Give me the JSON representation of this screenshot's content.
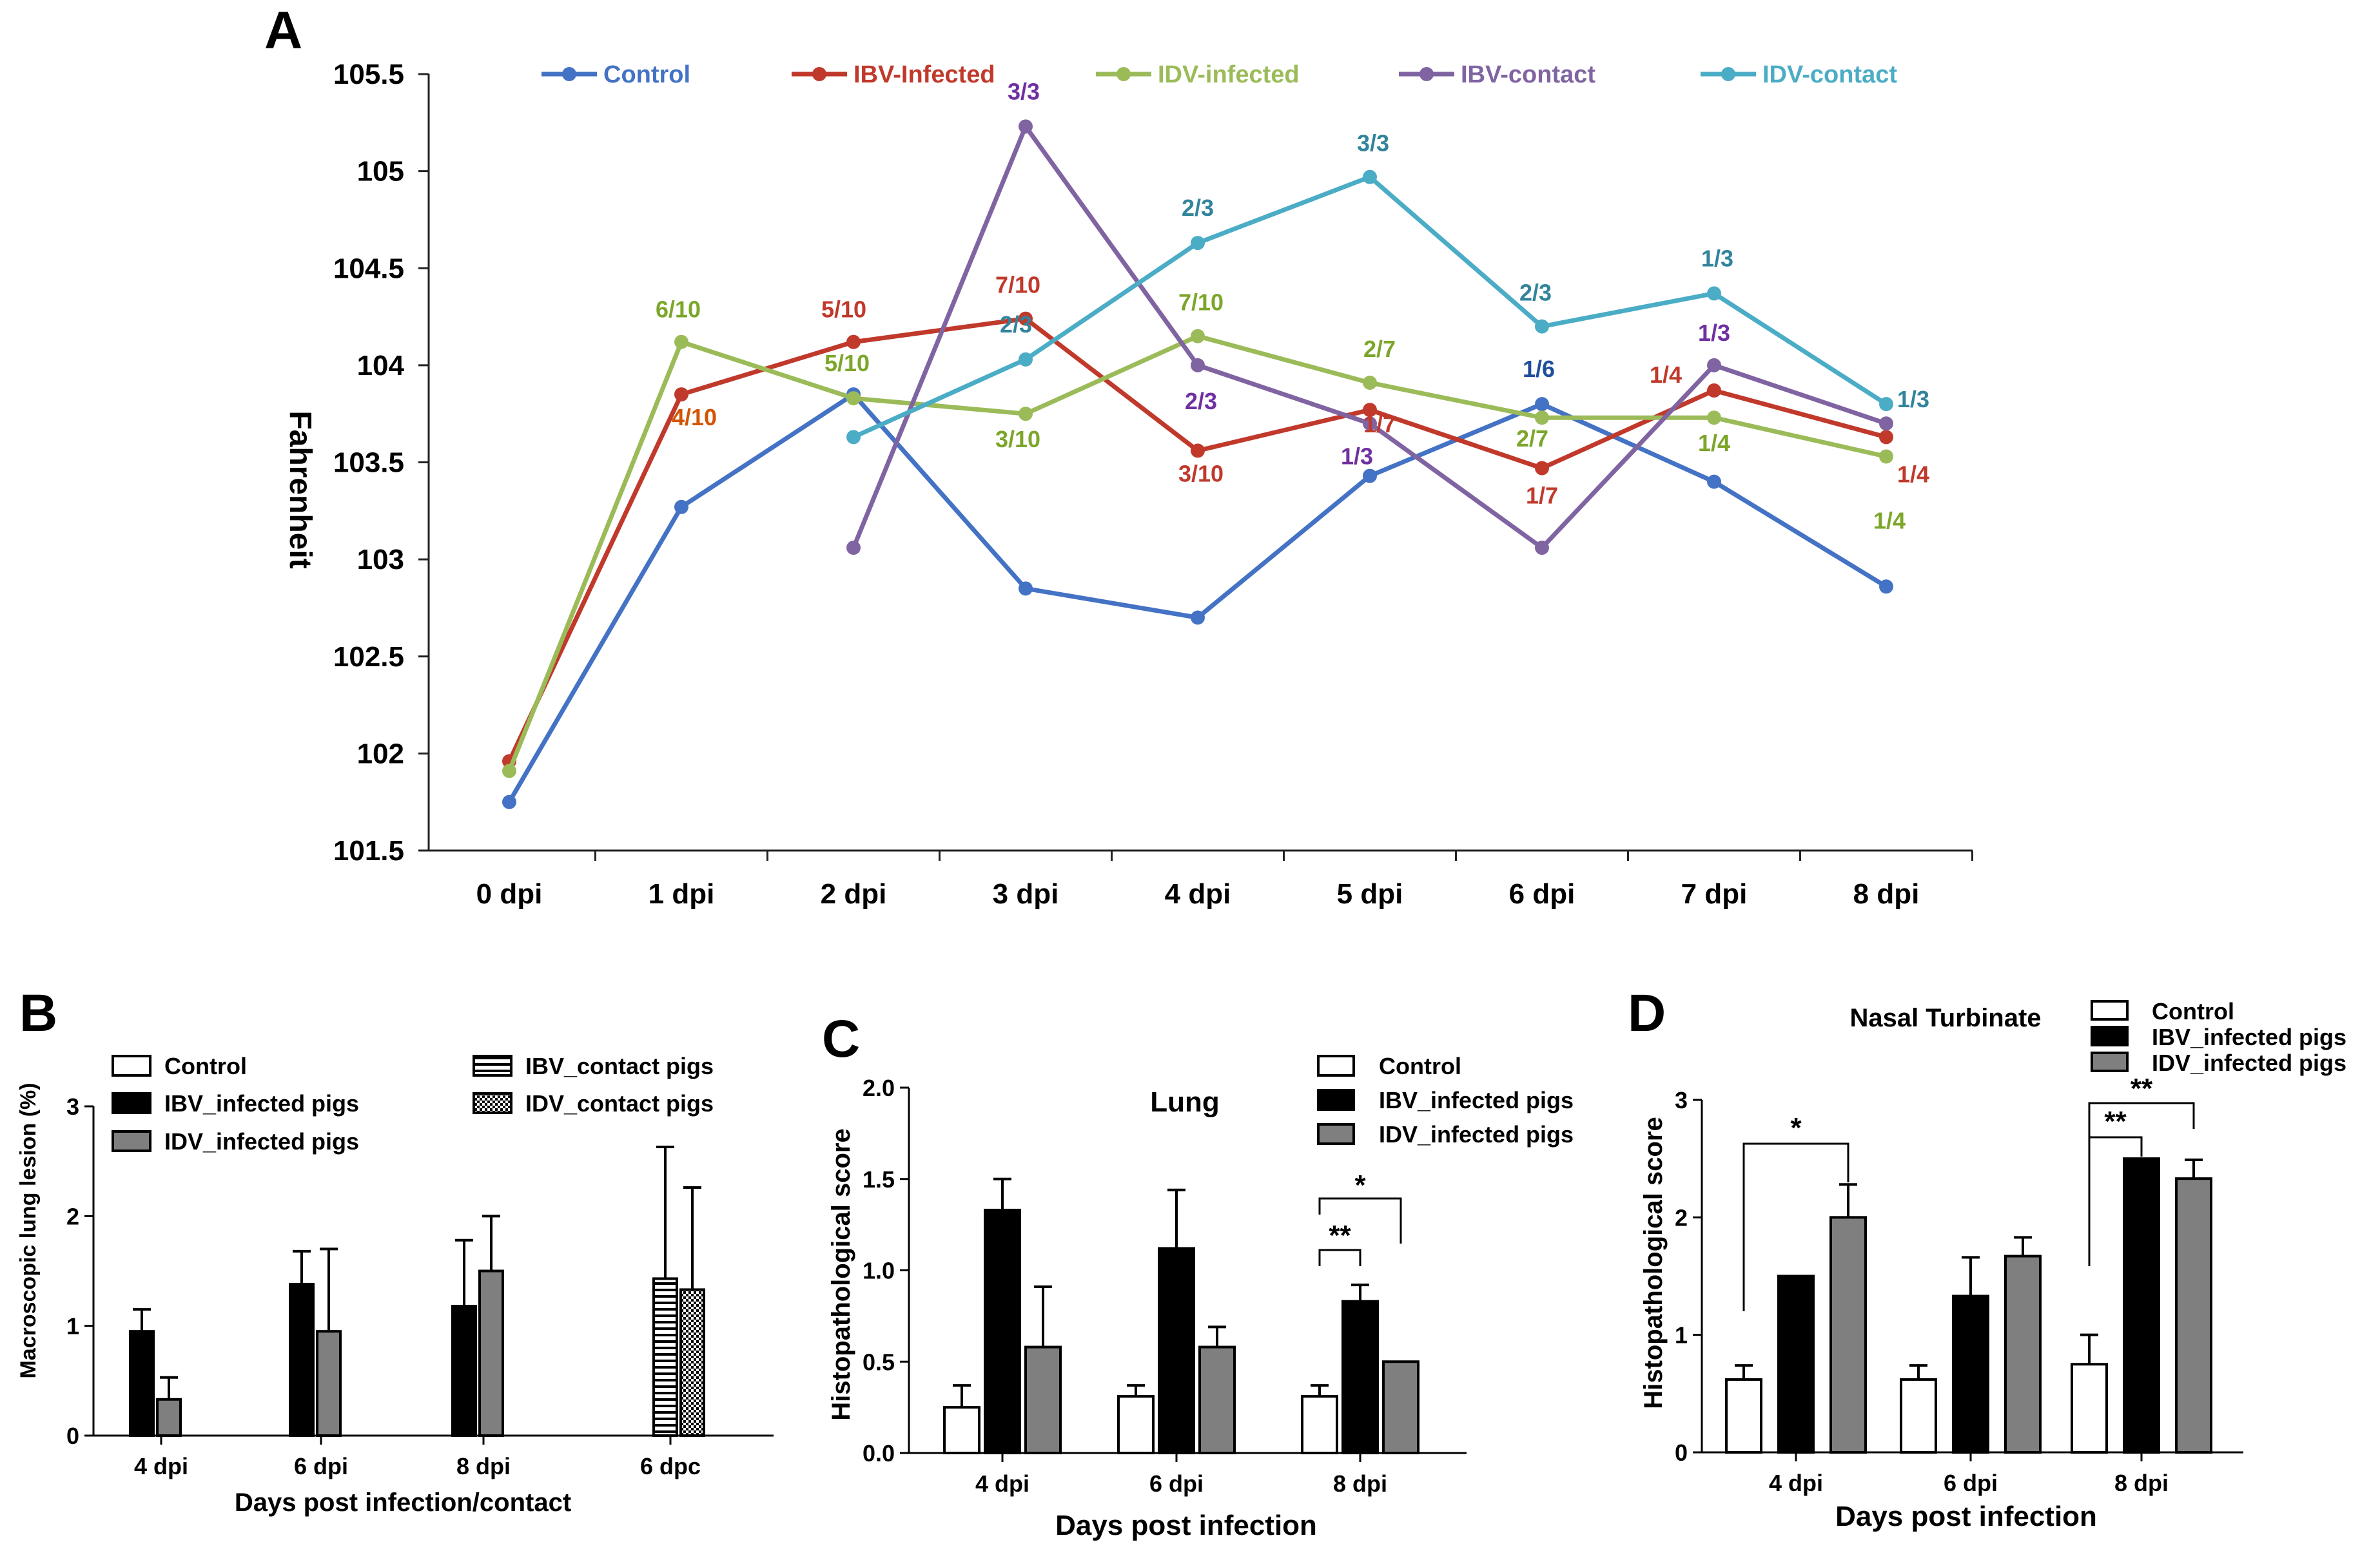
{
  "chart_data": [
    {
      "panel": "A",
      "type": "line",
      "ylabel": "Fahrenheit",
      "ylim": [
        101.5,
        105.5
      ],
      "ytick_labels": [
        "101.5",
        "102",
        "102.5",
        "103",
        "103.5",
        "104",
        "104.5",
        "105",
        "105.5"
      ],
      "yticks": [
        101.5,
        102,
        102.5,
        103,
        103.5,
        104,
        104.5,
        105,
        105.5
      ],
      "categories": [
        "0 dpi",
        "1 dpi",
        "2 dpi",
        "3 dpi",
        "4 dpi",
        "5 dpi",
        "6 dpi",
        "7 dpi",
        "8 dpi"
      ],
      "series": [
        {
          "name": "Control",
          "color": "#4472C4",
          "values": [
            101.75,
            103.27,
            103.85,
            102.85,
            102.7,
            103.43,
            103.8,
            103.4,
            102.86
          ]
        },
        {
          "name": "IBV-Infected",
          "color": "#C0392B",
          "values": [
            101.96,
            103.85,
            104.12,
            104.24,
            103.56,
            103.77,
            103.47,
            103.87,
            103.63
          ]
        },
        {
          "name": "IDV-infected",
          "color": "#9BBB59",
          "values": [
            101.91,
            104.12,
            103.83,
            103.75,
            104.15,
            103.91,
            103.73,
            103.73,
            103.53
          ]
        },
        {
          "name": "IBV-contact",
          "color": "#8064A2",
          "values": [
            null,
            null,
            103.06,
            105.23,
            104.0,
            103.7,
            103.06,
            104.0,
            103.7
          ]
        },
        {
          "name": "IDV-contact",
          "color": "#4BACC6",
          "values": [
            null,
            null,
            103.63,
            104.03,
            104.63,
            104.97,
            104.2,
            104.37,
            103.8
          ]
        }
      ],
      "annotations": [
        {
          "text": "6/10",
          "series": "IDV-infected",
          "category": "1 dpi",
          "color": "#7CA62A"
        },
        {
          "text": "4/10",
          "series": "IBV-Infected",
          "category": "1 dpi",
          "color": "#D35400"
        },
        {
          "text": "5/10",
          "series": "IBV-Infected",
          "category": "2 dpi",
          "color": "#C0392B"
        },
        {
          "text": "5/10",
          "series": "IDV-infected",
          "category": "2 dpi",
          "color": "#7CA62A"
        },
        {
          "text": "3/3",
          "series": "IBV-contact",
          "category": "3 dpi",
          "color": "#7030A0"
        },
        {
          "text": "7/10",
          "series": "IBV-Infected",
          "category": "3 dpi",
          "color": "#C0392B"
        },
        {
          "text": "2/3",
          "series": "IDV-contact",
          "category": "3 dpi",
          "color": "#31849B"
        },
        {
          "text": "3/10",
          "series": "IDV-infected",
          "category": "3 dpi",
          "color": "#7CA62A"
        },
        {
          "text": "2/3",
          "series": "IDV-contact",
          "category": "4 dpi",
          "color": "#31849B"
        },
        {
          "text": "7/10",
          "series": "IDV-infected",
          "category": "4 dpi",
          "color": "#7CA62A"
        },
        {
          "text": "2/3",
          "series": "IBV-contact",
          "category": "4 dpi",
          "color": "#7030A0"
        },
        {
          "text": "3/10",
          "series": "IBV-Infected",
          "category": "4 dpi",
          "color": "#C0392B"
        },
        {
          "text": "3/3",
          "series": "IDV-contact",
          "category": "5 dpi",
          "color": "#31849B"
        },
        {
          "text": "2/7",
          "series": "IDV-infected",
          "category": "5 dpi",
          "color": "#7CA62A"
        },
        {
          "text": "1/7",
          "series": "IBV-Infected",
          "category": "5 dpi",
          "color": "#C0392B"
        },
        {
          "text": "1/3",
          "series": "IBV-contact",
          "category": "5 dpi",
          "color": "#7030A0"
        },
        {
          "text": "2/3",
          "series": "IDV-contact",
          "category": "6 dpi",
          "color": "#31849B"
        },
        {
          "text": "1/6",
          "series": "Control",
          "category": "6 dpi",
          "color": "#1F4E9C"
        },
        {
          "text": "2/7",
          "series": "IDV-infected",
          "category": "6 dpi",
          "color": "#7CA62A"
        },
        {
          "text": "1/7",
          "series": "IBV-Infected",
          "category": "6 dpi",
          "color": "#C0392B"
        },
        {
          "text": "1/3",
          "series": "IDV-contact",
          "category": "7 dpi",
          "color": "#31849B"
        },
        {
          "text": "1/3",
          "series": "IBV-contact",
          "category": "7 dpi",
          "color": "#7030A0"
        },
        {
          "text": "1/4",
          "series": "IBV-Infected",
          "category": "7 dpi",
          "color": "#C0392B"
        },
        {
          "text": "1/4",
          "series": "IDV-infected",
          "category": "7 dpi",
          "color": "#7CA62A"
        },
        {
          "text": "1/3",
          "series": "IDV-contact",
          "category": "8 dpi",
          "color": "#31849B"
        },
        {
          "text": "1/4",
          "series": "IBV-Infected",
          "category": "8 dpi",
          "color": "#C0392B"
        },
        {
          "text": "1/4",
          "series": "IDV-infected",
          "category": "8 dpi",
          "color": "#7CA62A"
        }
      ]
    },
    {
      "panel": "B",
      "type": "bar",
      "ylabel": "Macroscopic lung lesion (%)",
      "xlabel": "Days post infection/contact",
      "ylim": [
        0,
        3
      ],
      "ytick_labels": [
        "0",
        "1",
        "2",
        "3"
      ],
      "yticks": [
        0,
        1,
        2,
        3
      ],
      "categories": [
        "4 dpi",
        "6 dpi",
        "8 dpi",
        "6 dpc"
      ],
      "series": [
        {
          "name": "Control",
          "fill": "white",
          "values": [
            0,
            0,
            0,
            0
          ],
          "errors": [
            0,
            0,
            0,
            0
          ]
        },
        {
          "name": "IBV_infected pigs",
          "fill": "black",
          "values": [
            0.95,
            1.38,
            1.18,
            0
          ],
          "errors": [
            0.2,
            0.3,
            0.6,
            0
          ]
        },
        {
          "name": "IDV_infected pigs",
          "fill": "gray",
          "values": [
            0.33,
            0.95,
            1.5,
            0
          ],
          "errors": [
            0.2,
            0.75,
            0.5,
            0
          ]
        },
        {
          "name": "IBV_contact pigs",
          "fill": "hstripe",
          "values": [
            0,
            0,
            0,
            1.43
          ],
          "errors": [
            0,
            0,
            0,
            1.2
          ]
        },
        {
          "name": "IDV_contact pigs",
          "fill": "checker",
          "values": [
            0,
            0,
            0,
            1.33
          ],
          "errors": [
            0,
            0,
            0,
            0.93
          ]
        }
      ]
    },
    {
      "panel": "C",
      "type": "bar",
      "title": "Lung",
      "ylabel": "Histopathological score",
      "xlabel": "Days post infection",
      "ylim": [
        0,
        2
      ],
      "ytick_labels": [
        "0.0",
        "0.5",
        "1.0",
        "1.5",
        "2.0"
      ],
      "yticks": [
        0,
        0.5,
        1,
        1.5,
        2
      ],
      "categories": [
        "4 dpi",
        "6 dpi",
        "8 dpi"
      ],
      "series": [
        {
          "name": "Control",
          "fill": "white",
          "values": [
            0.25,
            0.31,
            0.31
          ],
          "errors": [
            0.12,
            0.06,
            0.06
          ]
        },
        {
          "name": "IBV_infected pigs",
          "fill": "black",
          "values": [
            1.33,
            1.12,
            0.83
          ],
          "errors": [
            0.17,
            0.32,
            0.09
          ]
        },
        {
          "name": "IDV_infected pigs",
          "fill": "gray",
          "values": [
            0.58,
            0.58,
            0.5
          ],
          "errors": [
            0.33,
            0.11,
            0
          ]
        }
      ],
      "significance": [
        {
          "label": "**",
          "from": "Control",
          "to": "IBV_infected pigs",
          "category": "8 dpi"
        },
        {
          "label": "*",
          "from": "Control",
          "to": "IDV_infected pigs",
          "category": "8 dpi"
        }
      ]
    },
    {
      "panel": "D",
      "type": "bar",
      "title": "Nasal Turbinate",
      "ylabel": "Histopathological score",
      "xlabel": "Days post infection",
      "ylim": [
        0,
        3
      ],
      "ytick_labels": [
        "0",
        "1",
        "2",
        "3"
      ],
      "yticks": [
        0,
        1,
        2,
        3
      ],
      "categories": [
        "4 dpi",
        "6 dpi",
        "8 dpi"
      ],
      "series": [
        {
          "name": "Control",
          "fill": "white",
          "values": [
            0.62,
            0.62,
            0.75
          ],
          "errors": [
            0.12,
            0.12,
            0.25
          ]
        },
        {
          "name": "IBV_infected pigs",
          "fill": "black",
          "values": [
            1.5,
            1.33,
            2.5
          ],
          "errors": [
            0,
            0.33,
            0
          ]
        },
        {
          "name": "IDV_infected pigs",
          "fill": "gray",
          "values": [
            2.0,
            1.67,
            2.33
          ],
          "errors": [
            0.28,
            0.16,
            0.16
          ]
        }
      ],
      "significance": [
        {
          "label": "*",
          "from": "Control",
          "to": "IDV_infected pigs",
          "category": "4 dpi"
        },
        {
          "label": "**",
          "from": "Control",
          "to": "IBV_infected pigs",
          "category": "8 dpi"
        },
        {
          "label": "**",
          "from": "Control",
          "to": "IDV_infected pigs",
          "category": "8 dpi"
        }
      ]
    }
  ]
}
